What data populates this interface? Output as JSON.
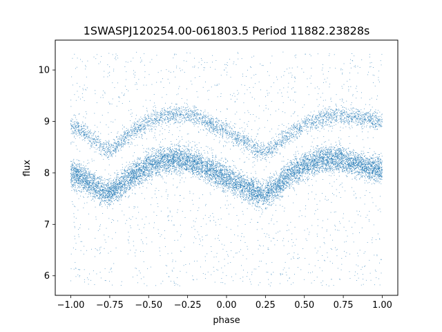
{
  "chart_data": {
    "type": "scatter",
    "title": "1SWASPJ120254.00-061803.5 Period 11882.23828s",
    "xlabel": "phase",
    "ylabel": "flux",
    "xlim": [
      -1.1,
      1.1
    ],
    "ylim": [
      5.62,
      10.58
    ],
    "x_ticks": [
      -1.0,
      -0.75,
      -0.5,
      -0.25,
      0.0,
      0.25,
      0.5,
      0.75,
      1.0
    ],
    "x_tick_labels": [
      "−1.00",
      "−0.75",
      "−0.50",
      "−0.25",
      "0.00",
      "0.25",
      "0.50",
      "0.75",
      "1.00"
    ],
    "y_ticks": [
      6,
      7,
      8,
      9,
      10
    ],
    "y_tick_labels": [
      "6",
      "7",
      "8",
      "9",
      "10"
    ],
    "grid": false,
    "marker_color": "#1f77b4",
    "series": [
      {
        "points_shown": "dense light curve, two bands",
        "phase": [
          -1.0,
          -0.9,
          -0.8,
          -0.75,
          -0.7,
          -0.6,
          -0.5,
          -0.4,
          -0.3,
          -0.25,
          -0.2,
          -0.1,
          0.0,
          0.1,
          0.2,
          0.25,
          0.3,
          0.4,
          0.5,
          0.6,
          0.7,
          0.75,
          0.8,
          0.9,
          1.0
        ],
        "flux_main_band": [
          8.0,
          7.85,
          7.65,
          7.6,
          7.7,
          7.95,
          8.15,
          8.25,
          8.28,
          8.25,
          8.2,
          8.05,
          7.9,
          7.75,
          7.6,
          7.58,
          7.68,
          7.95,
          8.15,
          8.25,
          8.28,
          8.26,
          8.2,
          8.12,
          8.05
        ],
        "flux_upper_band": [
          8.95,
          8.75,
          8.5,
          8.45,
          8.55,
          8.8,
          9.0,
          9.1,
          9.15,
          9.15,
          9.1,
          8.95,
          8.8,
          8.65,
          8.45,
          8.42,
          8.5,
          8.75,
          8.95,
          9.05,
          9.12,
          9.12,
          9.1,
          9.05,
          9.0
        ]
      }
    ]
  }
}
